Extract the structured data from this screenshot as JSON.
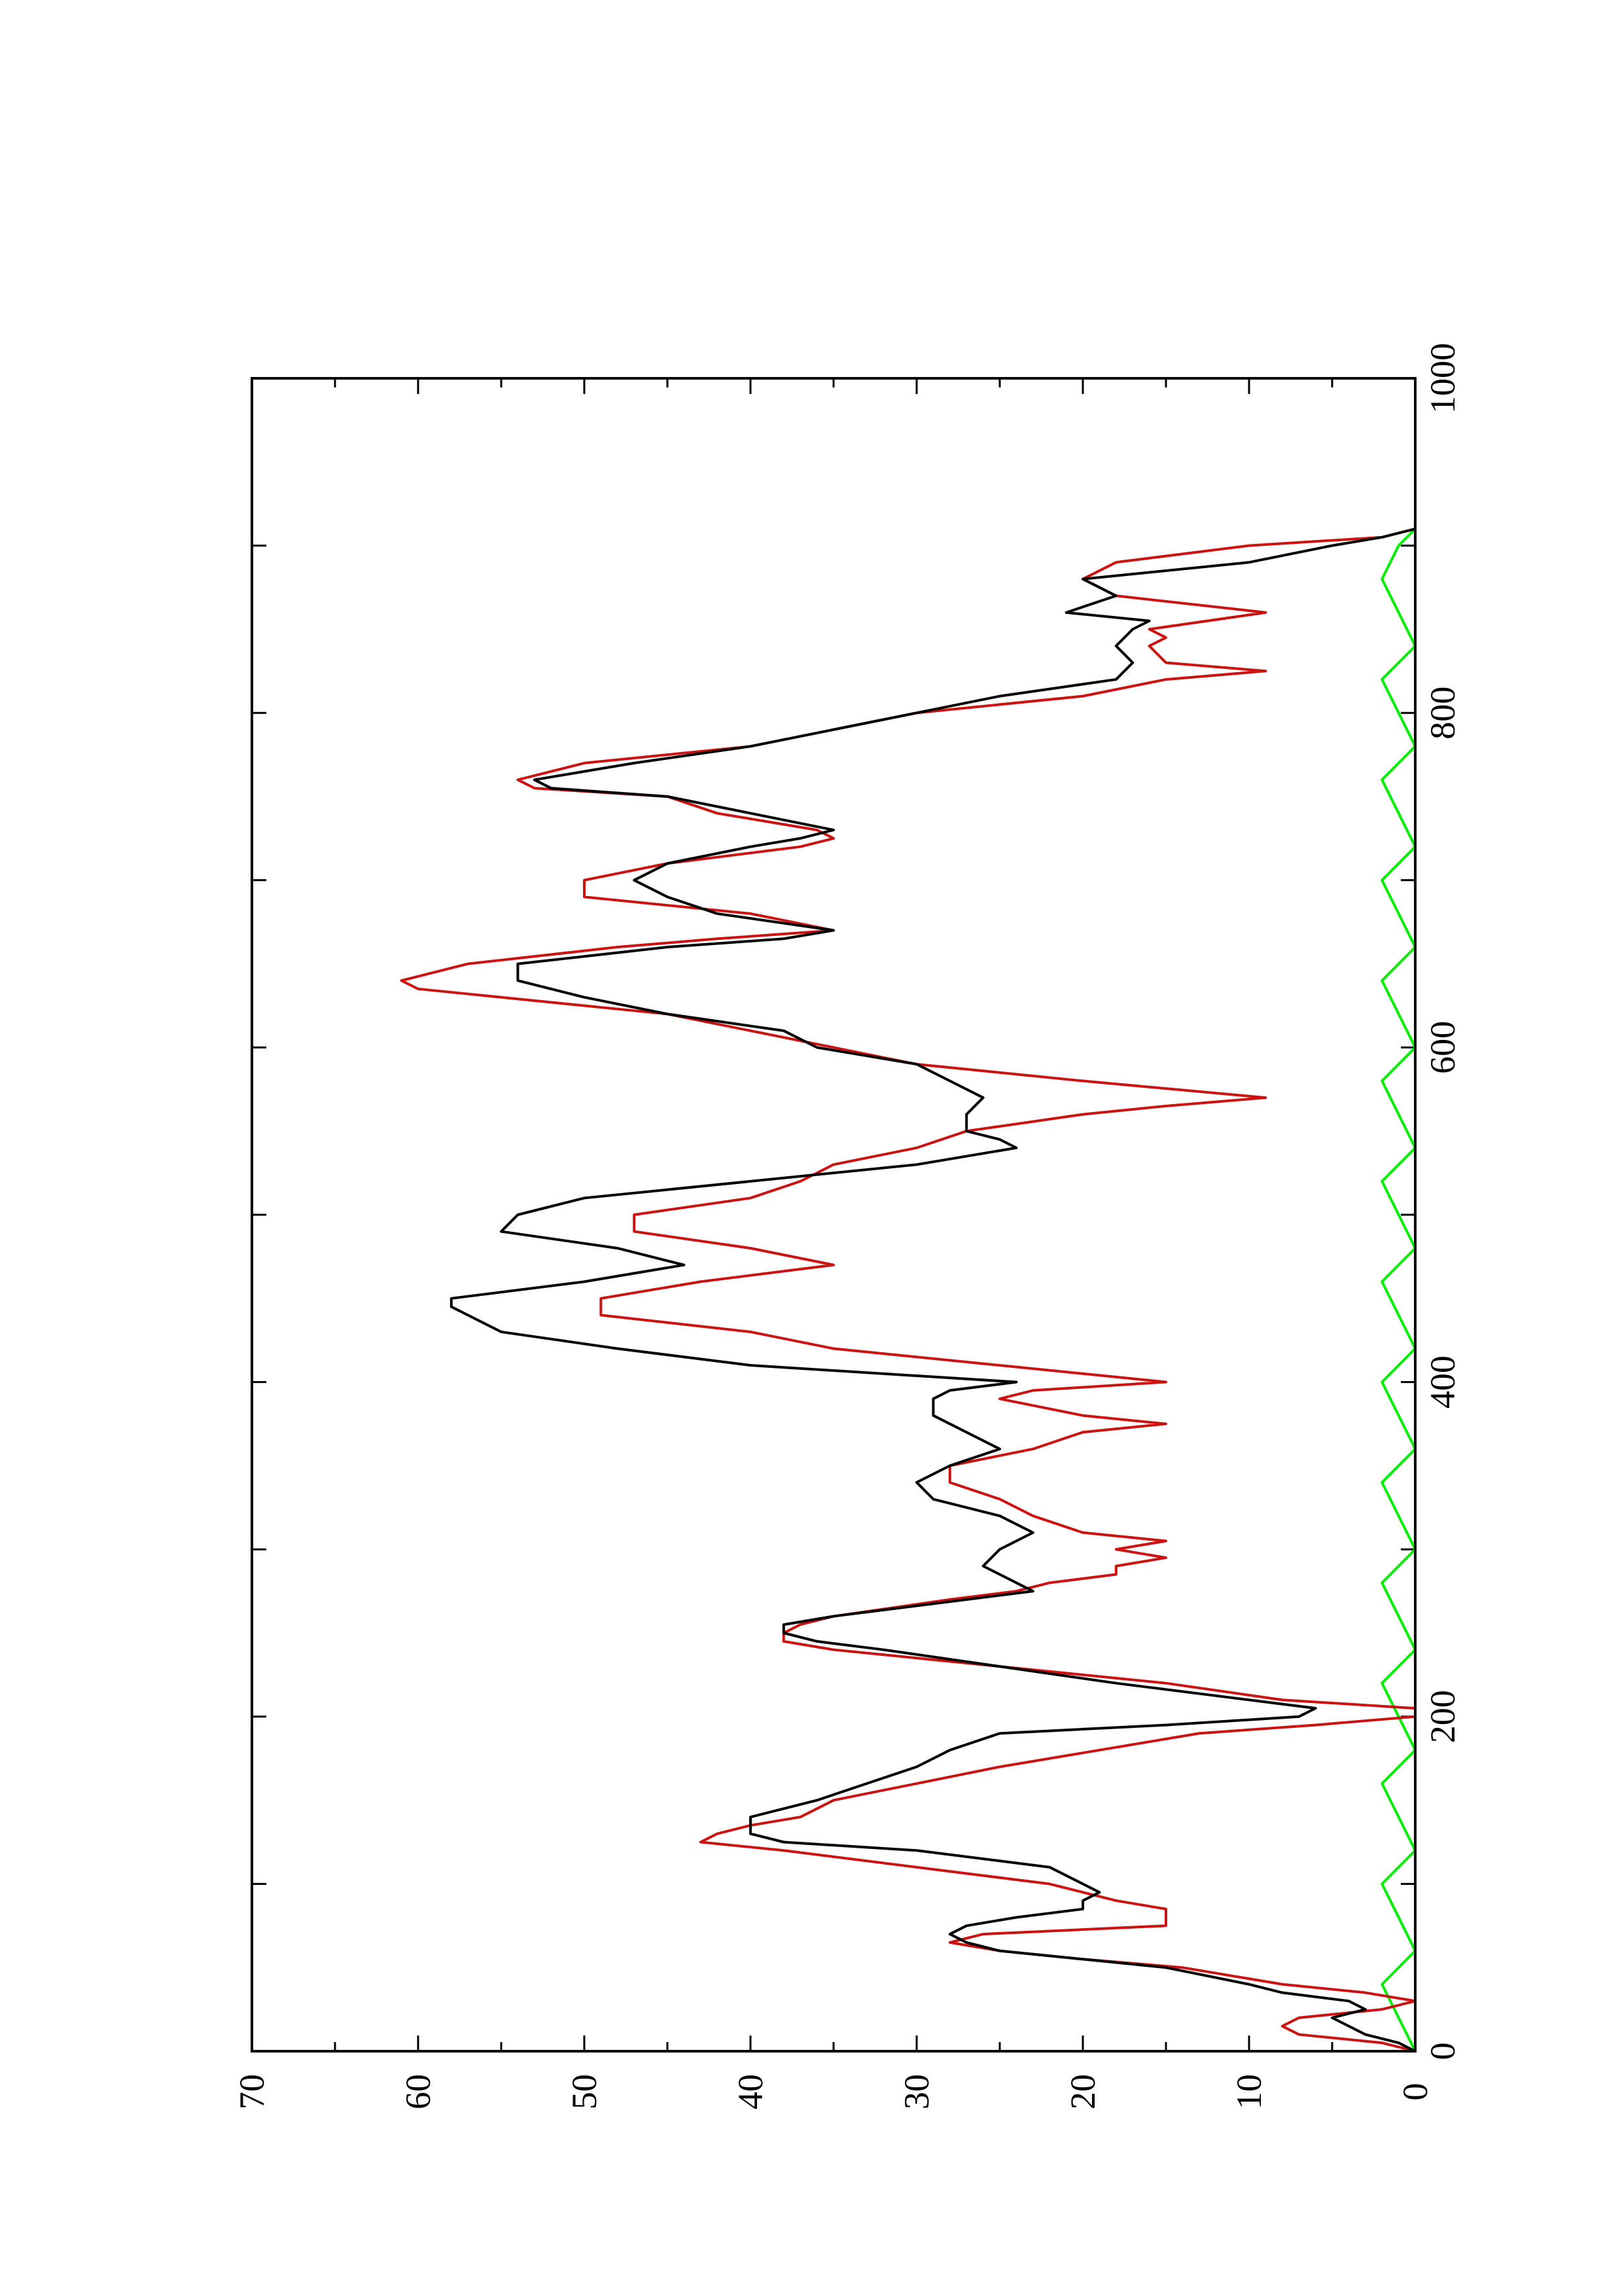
{
  "chart_data": {
    "type": "line",
    "orientation": "rotated-90-ccw",
    "title": "",
    "xlabel": "",
    "ylabel": "",
    "xlim": [
      0,
      1000
    ],
    "ylim": [
      0,
      70
    ],
    "grid": false,
    "legend": "none",
    "x_ticks": [
      "0",
      "200",
      "400",
      "600",
      "800",
      "1000"
    ],
    "y_ticks": [
      "0",
      "10",
      "20",
      "30",
      "40",
      "50",
      "60",
      "70"
    ],
    "series": [
      {
        "color": "#000000",
        "x": [
          0,
          5,
          10,
          20,
          25,
          30,
          35,
          40,
          50,
          55,
          60,
          65,
          70,
          75,
          80,
          85,
          90,
          95,
          100,
          110,
          120,
          125,
          130,
          140,
          150,
          160,
          170,
          180,
          190,
          195,
          200,
          205,
          210,
          220,
          230,
          240,
          245,
          250,
          255,
          260,
          270,
          275,
          280,
          290,
          300,
          310,
          320,
          330,
          340,
          350,
          360,
          370,
          380,
          390,
          395,
          400,
          410,
          420,
          430,
          440,
          445,
          450,
          460,
          470,
          480,
          490,
          500,
          510,
          520,
          530,
          540,
          545,
          550,
          560,
          570,
          580,
          590,
          600,
          610,
          620,
          630,
          640,
          650,
          660,
          665,
          670,
          680,
          690,
          700,
          710,
          720,
          725,
          730,
          740,
          750,
          755,
          760,
          770,
          780,
          790,
          800,
          810,
          820,
          830,
          840,
          850,
          855,
          860,
          870,
          880,
          890,
          900,
          905,
          910
        ],
        "y": [
          0,
          1,
          3,
          5,
          3,
          4,
          8,
          10,
          15,
          20,
          25,
          27,
          28,
          27,
          24,
          20,
          20,
          19,
          20,
          22,
          30,
          38,
          40,
          40,
          36,
          33,
          30,
          28,
          25,
          15,
          7,
          6,
          10,
          18,
          25,
          32,
          36,
          38,
          38,
          35,
          27,
          23,
          24,
          26,
          25,
          23,
          25,
          29,
          30,
          28,
          25,
          27,
          29,
          29,
          28,
          24,
          40,
          48,
          55,
          57,
          58,
          58,
          50,
          44,
          48,
          55,
          54,
          50,
          40,
          30,
          24,
          25,
          27,
          27,
          26,
          28,
          30,
          36,
          38,
          45,
          50,
          54,
          54,
          45,
          38,
          35,
          42,
          45,
          47,
          45,
          40,
          37,
          35,
          40,
          45,
          52,
          53,
          47,
          40,
          35,
          30,
          25,
          18,
          17,
          18,
          17,
          16,
          21,
          18,
          20,
          10,
          5,
          2,
          0
        ],
        "style": "solid"
      },
      {
        "color": "#cc1111",
        "x": [
          0,
          5,
          10,
          15,
          20,
          25,
          30,
          35,
          40,
          50,
          55,
          60,
          65,
          70,
          75,
          80,
          85,
          90,
          95,
          100,
          110,
          120,
          125,
          130,
          135,
          140,
          150,
          160,
          170,
          180,
          190,
          195,
          200,
          205,
          210,
          220,
          230,
          240,
          245,
          250,
          255,
          260,
          270,
          275,
          280,
          285,
          290,
          295,
          300,
          305,
          310,
          320,
          330,
          340,
          350,
          360,
          370,
          375,
          380,
          390,
          395,
          400,
          410,
          420,
          430,
          440,
          450,
          460,
          470,
          480,
          490,
          500,
          510,
          520,
          530,
          540,
          550,
          560,
          565,
          570,
          580,
          590,
          600,
          610,
          620,
          630,
          635,
          640,
          650,
          660,
          665,
          670,
          680,
          690,
          700,
          710,
          720,
          725,
          730,
          740,
          750,
          755,
          760,
          770,
          780,
          790,
          800,
          810,
          820,
          825,
          830,
          840,
          845,
          850,
          860,
          870,
          880,
          890,
          900,
          905,
          910
        ],
        "y": [
          0,
          2,
          7,
          8,
          7,
          2,
          0,
          3,
          8,
          14,
          20,
          25,
          28,
          26,
          15,
          15,
          15,
          18,
          20,
          22,
          30,
          38,
          43,
          42,
          40,
          37,
          35,
          30,
          25,
          19,
          13,
          6,
          0,
          0,
          8,
          15,
          25,
          35,
          38,
          38,
          37,
          35,
          28,
          24,
          22,
          18,
          18,
          15,
          18,
          15,
          20,
          23,
          25,
          28,
          28,
          23,
          20,
          15,
          20,
          25,
          23,
          15,
          25,
          35,
          40,
          49,
          49,
          43,
          35,
          40,
          47,
          47,
          40,
          37,
          35,
          30,
          27,
          20,
          15,
          9,
          20,
          30,
          35,
          40,
          45,
          55,
          60,
          61,
          57,
          48,
          42,
          35,
          40,
          50,
          50,
          45,
          37,
          35,
          36,
          42,
          45,
          53,
          54,
          50,
          40,
          35,
          30,
          20,
          15,
          9,
          15,
          16,
          15,
          16,
          9,
          18,
          20,
          18,
          10,
          2,
          0
        ],
        "style": "solid"
      },
      {
        "color": "#00ee00",
        "x": [
          0,
          20,
          40,
          60,
          80,
          100,
          120,
          140,
          160,
          180,
          200,
          220,
          240,
          260,
          280,
          300,
          320,
          340,
          360,
          380,
          400,
          420,
          440,
          460,
          480,
          500,
          520,
          540,
          560,
          580,
          600,
          620,
          640,
          660,
          680,
          700,
          720,
          740,
          760,
          780,
          800,
          820,
          840,
          860,
          880,
          900,
          910
        ],
        "y": [
          0,
          1,
          2,
          0,
          1,
          2,
          0,
          1,
          2,
          0,
          1,
          2,
          0,
          1,
          2,
          0,
          1,
          2,
          0,
          1,
          2,
          0,
          1,
          2,
          0,
          1,
          2,
          0,
          1,
          2,
          0,
          1,
          2,
          0,
          1,
          2,
          0,
          1,
          2,
          0,
          1,
          2,
          0,
          1,
          2,
          1,
          0
        ],
        "style": "solid"
      }
    ]
  }
}
